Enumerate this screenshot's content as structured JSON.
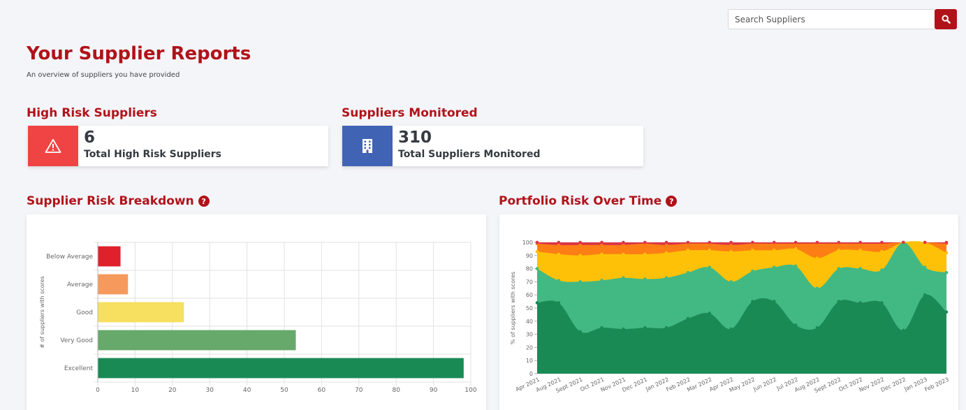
{
  "search": {
    "placeholder": "Search Suppliers"
  },
  "header": {
    "title": "Your Supplier Reports",
    "subtitle": "An overview of suppliers you have provided"
  },
  "high_risk": {
    "heading": "High Risk Suppliers",
    "value": "6",
    "label": "Total High Risk Suppliers"
  },
  "monitored": {
    "heading": "Suppliers Monitored",
    "value": "310",
    "label": "Total Suppliers Monitored"
  },
  "breakdown": {
    "heading": "Supplier Risk Breakdown"
  },
  "portfolio": {
    "heading": "Portfolio Risk Over Time"
  },
  "colors": {
    "brand": "#b1121a",
    "alert": "#f04444",
    "monitor": "#4063b3",
    "below_average": "#e0202a",
    "average": "#f59a5c",
    "good": "#f7df5f",
    "very_good": "#67a96a",
    "excellent": "#1a8a55",
    "area_excellent": "#1a8a55",
    "area_very_good": "#42b883",
    "area_good": "#ffc107",
    "area_average": "#fd7e14",
    "area_below": "#dc3545"
  },
  "chart_data": [
    {
      "type": "bar",
      "orientation": "horizontal",
      "categories": [
        "Below Average",
        "Average",
        "Good",
        "Very Good",
        "Excellent"
      ],
      "values": [
        6,
        8,
        23,
        53,
        98
      ],
      "xlim": [
        0,
        100
      ],
      "xticks": [
        "0",
        "10",
        "20",
        "30",
        "40",
        "50",
        "60",
        "70",
        "80",
        "90",
        "100"
      ],
      "ylabel": "# of suppliers with scores",
      "grid": true
    },
    {
      "type": "area",
      "stacked": true,
      "x": [
        "Apr 2021",
        "Aug 2021",
        "Sept 2021",
        "Oct 2021",
        "Nov 2021",
        "Dec 2021",
        "Jan 2022",
        "Feb 2022",
        "Mar 2022",
        "Apr 2022",
        "May 2022",
        "Jun 2022",
        "Jul 2022",
        "Aug 2022",
        "Sept 2022",
        "Oct 2022",
        "Nov 2022",
        "Dec 2022",
        "Jan 2023",
        "Feb 2023"
      ],
      "ylabel": "% of suppliers with scores",
      "ylim": [
        0,
        100
      ],
      "yticks": [
        "0",
        "10",
        "20",
        "30",
        "40",
        "50",
        "60",
        "70",
        "80",
        "90",
        "100"
      ],
      "grid": true,
      "series": [
        {
          "values": [
            54,
            54,
            32,
            35,
            34,
            35,
            35,
            42,
            46,
            34,
            55,
            55,
            37,
            35,
            55,
            54,
            54,
            33,
            60,
            47
          ]
        },
        {
          "values": [
            80,
            71,
            70,
            71,
            73,
            72,
            73,
            77,
            81,
            70,
            78,
            81,
            82,
            65,
            80,
            80,
            79,
            100,
            81,
            77
          ]
        },
        {
          "values": [
            93,
            91,
            90,
            91,
            91,
            91,
            92,
            94,
            94,
            93,
            94,
            94,
            95,
            88,
            94,
            94,
            93,
            100,
            100,
            92
          ]
        },
        {
          "values": [
            99,
            98,
            98,
            98,
            98,
            99,
            98,
            99,
            99,
            98,
            99,
            99,
            99,
            99,
            99,
            99,
            99,
            100,
            100,
            99
          ]
        },
        {
          "values": [
            100,
            100,
            100,
            100,
            100,
            100,
            100,
            100,
            100,
            100,
            100,
            100,
            100,
            100,
            100,
            100,
            100,
            100,
            100,
            100
          ]
        }
      ]
    }
  ]
}
